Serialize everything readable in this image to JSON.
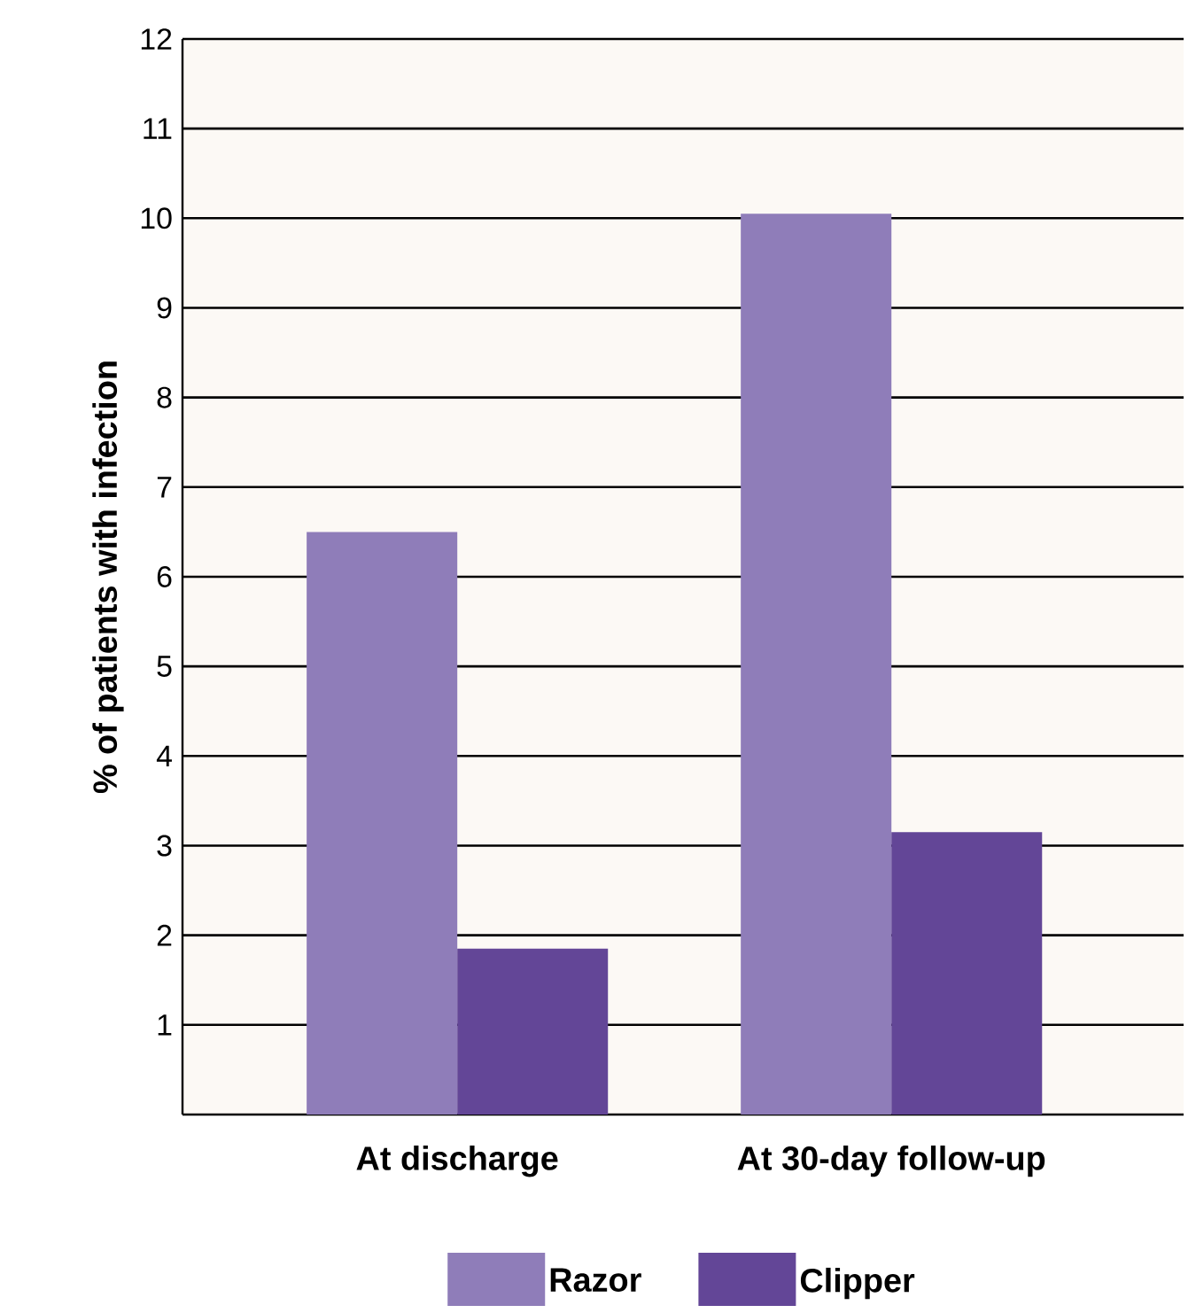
{
  "chart_data": {
    "type": "bar",
    "ylabel": "% of patients with infection",
    "categories": [
      "At discharge",
      "At 30-day follow-up"
    ],
    "series": [
      {
        "name": "Razor",
        "color": "#8f7db9",
        "values": [
          6.5,
          10.05
        ]
      },
      {
        "name": "Clipper",
        "color": "#634697",
        "values": [
          1.85,
          3.15
        ]
      }
    ],
    "ylim": [
      0,
      12
    ],
    "yticks": [
      1,
      2,
      3,
      4,
      5,
      6,
      7,
      8,
      9,
      10,
      11,
      12
    ],
    "grid": "y",
    "legend": "bottom"
  }
}
